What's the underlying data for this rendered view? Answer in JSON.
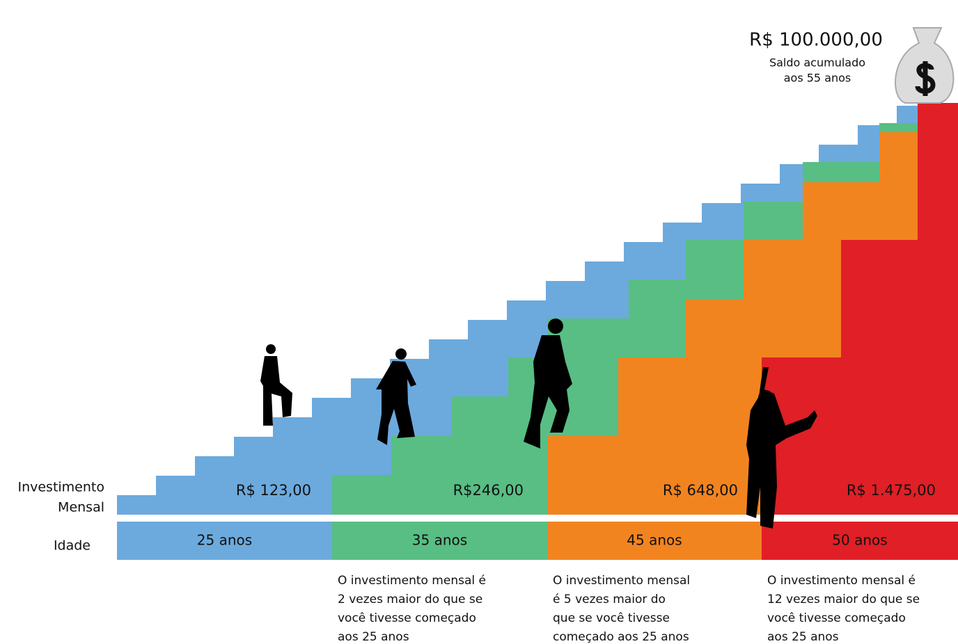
{
  "goal": {
    "amount": "R$ 100.000,00",
    "caption": [
      "Saldo acumulado",
      "aos 55 anos"
    ]
  },
  "row_labels": {
    "investment": [
      "Investimento",
      "Mensal"
    ],
    "age": "Idade"
  },
  "tiers": [
    {
      "amount": "R$ 123,00",
      "age": "25 anos",
      "color": "#6caadd"
    },
    {
      "amount": "R$246,00",
      "age": "35 anos",
      "color": "#58be84",
      "note": [
        "O investimento mensal é",
        "2 vezes maior do que se",
        "você tivesse começado",
        "aos 25 anos"
      ]
    },
    {
      "amount": "R$ 648,00",
      "age": "45 anos",
      "color": "#f28420",
      "note": [
        "O investimento mensal",
        "é 5 vezes maior do",
        "que se você tivesse",
        "começado aos 25 anos"
      ]
    },
    {
      "amount": "R$ 1.475,00",
      "age": "50 anos",
      "color": "#e01f26",
      "note": [
        "O investimento mensal é",
        "12 vezes maior do que se",
        "você tivesse começado",
        "aos 25 anos"
      ]
    }
  ]
}
